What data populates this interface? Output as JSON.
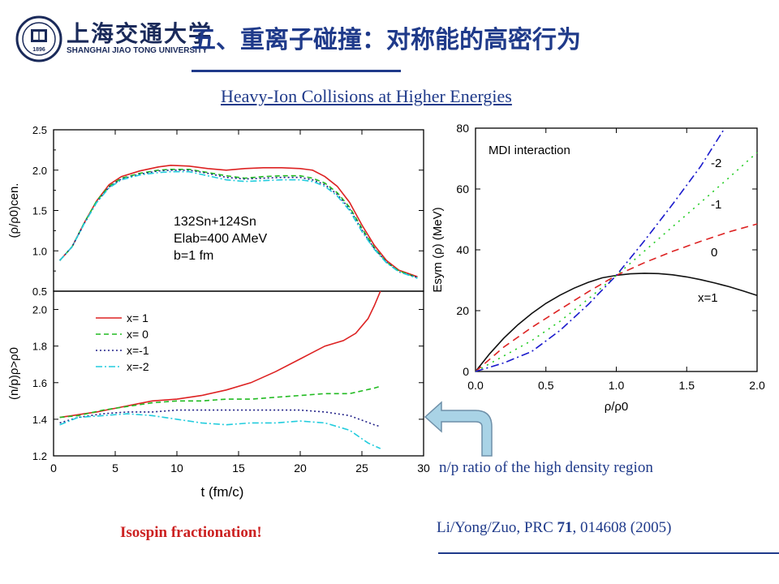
{
  "header": {
    "university_cn": "上海交通大学",
    "university_en": "SHANGHAI JIAO TONG UNIVERSITY",
    "seal_year": "1896",
    "title": "五、重离子碰撞：对称能的高密行为"
  },
  "subtitle": "Heavy-Ion Collisions at Higher Energies",
  "captions": {
    "np_region": "n/p ratio of the high density region",
    "isospin": "Isospin fractionation!",
    "ref_prefix": "Li/Yong/Zuo, PRC ",
    "ref_volume": "71",
    "ref_suffix": ", 014608 (2005)"
  },
  "colors": {
    "title": "#1f3a8a",
    "emphasis": "#cc2222",
    "arrow": "#a9d3e6"
  },
  "chart_data": [
    {
      "type": "line",
      "panel": "density",
      "ylabel": "(ρ/ρ0)cen.",
      "ylim": [
        0.5,
        2.5
      ],
      "xlim": [
        0,
        30
      ],
      "yticks": [
        "0.5",
        "1.0",
        "1.5",
        "2.0",
        "2.5"
      ],
      "annotation": [
        "132Sn+124Sn",
        "Elab=400 AMeV",
        "b=1 fm"
      ],
      "series": [
        {
          "name": "x= 1",
          "color": "#dd2222",
          "dash": "",
          "x": [
            0.5,
            1.5,
            2.5,
            3.5,
            4.5,
            5.5,
            7,
            8.5,
            9.5,
            11,
            12.5,
            14,
            15.5,
            17,
            18.5,
            20,
            21,
            22,
            23,
            24,
            25,
            26,
            27,
            28,
            29.5
          ],
          "y": [
            0.88,
            1.05,
            1.35,
            1.62,
            1.82,
            1.92,
            1.99,
            2.04,
            2.06,
            2.05,
            2.02,
            2.0,
            2.02,
            2.03,
            2.03,
            2.02,
            2.0,
            1.92,
            1.8,
            1.6,
            1.32,
            1.07,
            0.88,
            0.76,
            0.68
          ]
        },
        {
          "name": "x= 0",
          "color": "#22bb22",
          "dash": "6,4",
          "x": [
            0.5,
            1.5,
            2.5,
            3.5,
            4.5,
            5.5,
            7,
            8.5,
            9.5,
            11,
            12.5,
            14,
            15.5,
            17,
            18.5,
            20,
            21,
            22,
            23,
            24,
            25,
            26,
            27,
            28,
            29.5
          ],
          "y": [
            0.88,
            1.05,
            1.35,
            1.62,
            1.8,
            1.9,
            1.96,
            2.0,
            2.01,
            2.01,
            1.97,
            1.93,
            1.9,
            1.92,
            1.93,
            1.93,
            1.9,
            1.84,
            1.72,
            1.54,
            1.28,
            1.04,
            0.86,
            0.75,
            0.67
          ]
        },
        {
          "name": "x=-1",
          "color": "#222288",
          "dash": "2,3",
          "x": [
            0.5,
            1.5,
            2.5,
            3.5,
            4.5,
            5.5,
            7,
            8.5,
            9.5,
            11,
            12.5,
            14,
            15.5,
            17,
            18.5,
            20,
            21,
            22,
            23,
            24,
            25,
            26,
            27,
            28,
            29.5
          ],
          "y": [
            0.88,
            1.05,
            1.34,
            1.6,
            1.79,
            1.89,
            1.95,
            1.99,
            2.0,
            2.0,
            1.96,
            1.91,
            1.89,
            1.9,
            1.91,
            1.91,
            1.88,
            1.82,
            1.7,
            1.52,
            1.26,
            1.03,
            0.86,
            0.74,
            0.67
          ]
        },
        {
          "name": "x=-2",
          "color": "#22ccdd",
          "dash": "8,3,2,3",
          "x": [
            0.5,
            1.5,
            2.5,
            3.5,
            4.5,
            5.5,
            7,
            8.5,
            9.5,
            11,
            12.5,
            14,
            15.5,
            17,
            18.5,
            20,
            21,
            22,
            23,
            24,
            25,
            26,
            27,
            28,
            29.5
          ],
          "y": [
            0.88,
            1.05,
            1.34,
            1.6,
            1.78,
            1.88,
            1.94,
            1.97,
            1.98,
            1.98,
            1.93,
            1.88,
            1.86,
            1.87,
            1.88,
            1.88,
            1.86,
            1.8,
            1.68,
            1.5,
            1.24,
            1.02,
            0.85,
            0.74,
            0.66
          ]
        }
      ]
    },
    {
      "type": "line",
      "panel": "np_ratio",
      "xlabel": "t (fm/c)",
      "ylabel": "(n/p)ρ>ρ0",
      "xlim": [
        0,
        30
      ],
      "ylim": [
        1.2,
        2.1
      ],
      "xticks": [
        "0",
        "5",
        "10",
        "15",
        "20",
        "25",
        "30"
      ],
      "yticks": [
        "1.2",
        "1.4",
        "1.6",
        "1.8",
        "2.0"
      ],
      "legend_position": "top-left",
      "series": [
        {
          "name": "x= 1",
          "color": "#dd2222",
          "dash": "",
          "x": [
            0.5,
            1.5,
            2.5,
            3.5,
            5,
            6.5,
            8,
            10,
            12,
            14,
            16,
            18,
            20,
            22,
            23.5,
            24.5,
            25.5,
            26,
            26.5
          ],
          "y": [
            1.41,
            1.42,
            1.43,
            1.44,
            1.46,
            1.48,
            1.5,
            1.51,
            1.53,
            1.56,
            1.6,
            1.66,
            1.73,
            1.8,
            1.83,
            1.87,
            1.95,
            2.02,
            2.1
          ]
        },
        {
          "name": "x= 0",
          "color": "#22bb22",
          "dash": "6,4",
          "x": [
            0.5,
            2,
            4,
            6,
            8,
            10,
            12,
            14,
            16,
            18,
            20,
            22,
            24,
            26,
            26.5
          ],
          "y": [
            1.41,
            1.42,
            1.45,
            1.47,
            1.49,
            1.5,
            1.5,
            1.51,
            1.51,
            1.52,
            1.53,
            1.54,
            1.54,
            1.57,
            1.58
          ]
        },
        {
          "name": "x=-1",
          "color": "#222288",
          "dash": "2,3",
          "x": [
            0.5,
            2,
            4,
            6,
            8,
            10,
            12,
            14,
            16,
            18,
            20,
            22,
            24,
            26,
            26.5
          ],
          "y": [
            1.38,
            1.41,
            1.43,
            1.44,
            1.44,
            1.45,
            1.45,
            1.45,
            1.45,
            1.45,
            1.45,
            1.44,
            1.42,
            1.37,
            1.36
          ]
        },
        {
          "name": "x=-2",
          "color": "#22ccdd",
          "dash": "8,3,2,3",
          "x": [
            0.5,
            2,
            4,
            6,
            8,
            10,
            12,
            14,
            16,
            18,
            20,
            22,
            24,
            25.5,
            26.5
          ],
          "y": [
            1.37,
            1.41,
            1.42,
            1.43,
            1.42,
            1.4,
            1.38,
            1.37,
            1.38,
            1.38,
            1.39,
            1.38,
            1.34,
            1.27,
            1.24
          ]
        }
      ]
    },
    {
      "type": "line",
      "panel": "esym",
      "title": "MDI interaction",
      "xlabel": "ρ/ρ0",
      "ylabel": "Esym (ρ) (MeV)",
      "xlim": [
        0,
        2
      ],
      "ylim": [
        0,
        80
      ],
      "xticks": [
        "0.0",
        "0.5",
        "1.0",
        "1.5",
        "2.0"
      ],
      "yticks": [
        "0",
        "20",
        "40",
        "60",
        "80"
      ],
      "series": [
        {
          "name": "x=1",
          "color": "#111111",
          "dash": "",
          "x": [
            0,
            0.1,
            0.2,
            0.3,
            0.4,
            0.5,
            0.6,
            0.7,
            0.8,
            0.9,
            1.0,
            1.1,
            1.2,
            1.3,
            1.4,
            1.5,
            1.6,
            1.7,
            1.8,
            1.9,
            2.0
          ],
          "y": [
            0,
            5.8,
            10.9,
            15.3,
            19.1,
            22.4,
            25.1,
            27.4,
            29.3,
            30.8,
            31.6,
            32.1,
            32.3,
            32.2,
            31.8,
            31.1,
            30.2,
            29.1,
            27.9,
            26.5,
            25.0
          ]
        },
        {
          "name": "0",
          "color": "#dd2222",
          "dash": "9,6",
          "x": [
            0,
            0.2,
            0.4,
            0.6,
            0.8,
            1.0,
            1.2,
            1.4,
            1.6,
            1.8,
            2.0
          ],
          "y": [
            0,
            8.0,
            14.5,
            20.4,
            26.2,
            31.6,
            35.8,
            39.5,
            42.8,
            45.9,
            48.5
          ]
        },
        {
          "name": "-1",
          "color": "#22cc22",
          "dash": "2,6",
          "x": [
            0,
            0.2,
            0.4,
            0.6,
            0.8,
            1.0,
            1.2,
            1.4,
            1.6,
            1.8,
            2.0
          ],
          "y": [
            0,
            5.1,
            10.2,
            16.5,
            23.8,
            31.6,
            39.6,
            47.6,
            55.6,
            63.7,
            72.0
          ]
        },
        {
          "name": "-2",
          "color": "#1a1acc",
          "dash": "10,4,2,4",
          "x": [
            0,
            0.2,
            0.4,
            0.6,
            0.8,
            1.0,
            1.2,
            1.4,
            1.6,
            1.77
          ],
          "y": [
            0,
            2.8,
            6.6,
            13.5,
            22.0,
            31.6,
            43.0,
            55.0,
            67.5,
            80.0
          ]
        }
      ]
    }
  ]
}
